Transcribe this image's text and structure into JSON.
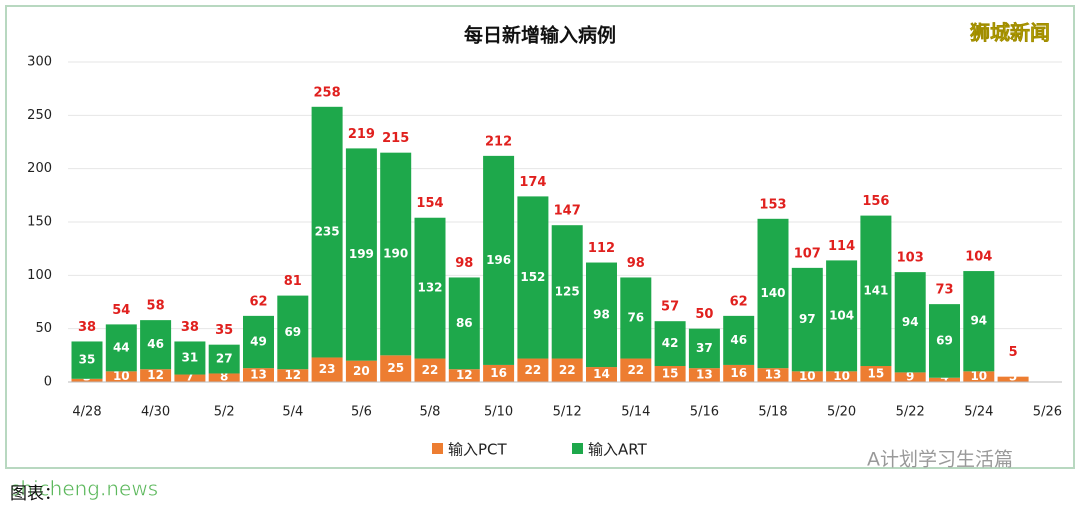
{
  "chart_data": {
    "type": "stacked-bar",
    "title": "每日新增输入病例",
    "categories": [
      "4/28",
      null,
      "4/30",
      null,
      "5/2",
      null,
      "5/4",
      null,
      "5/6",
      null,
      "5/8",
      null,
      "5/10",
      null,
      "5/12",
      null,
      "5/14",
      null,
      "5/16",
      null,
      "5/18",
      null,
      "5/20",
      null,
      "5/22",
      null,
      "5/24",
      null,
      "5/26"
    ],
    "series": [
      {
        "name": "输入PCT",
        "color": "#ed7d31",
        "values": [
          3,
          10,
          12,
          7,
          8,
          13,
          12,
          23,
          20,
          25,
          22,
          12,
          16,
          22,
          22,
          14,
          22,
          15,
          13,
          16,
          13,
          10,
          10,
          15,
          9,
          4,
          10,
          5,
          null
        ]
      },
      {
        "name": "输入ART",
        "color": "#1ea84b",
        "values": [
          35,
          44,
          46,
          31,
          27,
          49,
          69,
          235,
          199,
          190,
          132,
          86,
          196,
          152,
          125,
          98,
          76,
          42,
          37,
          46,
          140,
          97,
          104,
          141,
          94,
          69,
          94,
          null,
          null
        ]
      }
    ],
    "totals": [
      38,
      54,
      58,
      38,
      35,
      62,
      81,
      258,
      219,
      215,
      154,
      98,
      212,
      174,
      147,
      112,
      98,
      57,
      50,
      62,
      153,
      107,
      114,
      156,
      103,
      73,
      104,
      5,
      null
    ],
    "ylim": [
      0,
      300
    ],
    "yticks": [
      0,
      50,
      100,
      150,
      200,
      250,
      300
    ],
    "grid": true,
    "legend": "bottom"
  },
  "watermarks": {
    "top_right": "狮城新闻",
    "bottom_right": "A计划学习生活篇",
    "bottom_left": "shicheng.news",
    "caption": "图表："
  }
}
